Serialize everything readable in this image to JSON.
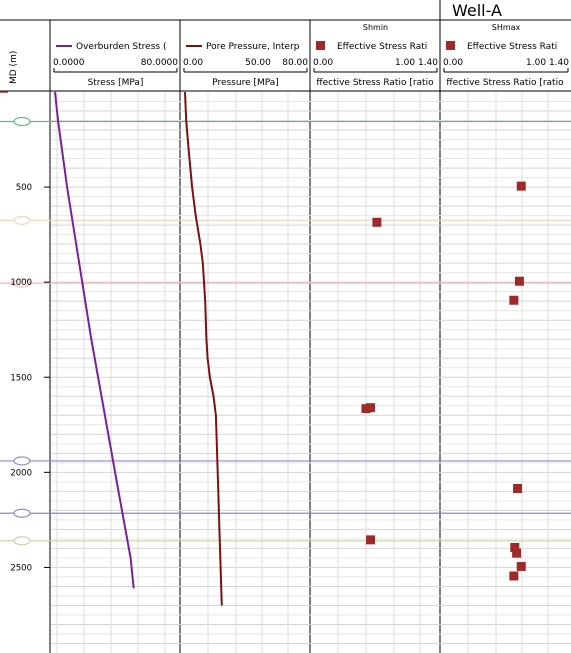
{
  "well_title": "Well-A",
  "depth_axis_label": "MD (m)",
  "tracks": [
    {
      "id": "stress",
      "header": "",
      "legend": "Overburden Stress (",
      "scale_min": "0.0000",
      "scale_max": "80.0000",
      "axis_label": "Stress [MPa]",
      "color": "#7a1f9a"
    },
    {
      "id": "pressure",
      "header": "",
      "legend": "Pore Pressure, Interp",
      "scale_min": "0.00",
      "scale_mid": "50.00",
      "scale_max": "80.00",
      "axis_label": "Pressure [MPa]",
      "color": "#7b1010"
    },
    {
      "id": "shmin",
      "header": "Shmin",
      "legend": "Effective Stress Rati",
      "scale_min": "0.00",
      "scale_max": "1.00 1.40",
      "axis_label": "ffective Stress Ratio [ratio",
      "color": "#9e2a2a"
    },
    {
      "id": "shmax",
      "header": "SHmax",
      "legend": "Effective Stress Rati",
      "scale_min": "0.00",
      "scale_max": "1.00 1.40",
      "axis_label": "ffective Stress Ratio [ratio",
      "color": "#9e2a2a"
    }
  ],
  "chart_data": {
    "type": "scatter",
    "depth_ticks": [
      500,
      1000,
      1500,
      2000,
      2500
    ],
    "depth_range": [
      0,
      2950
    ],
    "markers": [
      {
        "md": 155,
        "color": "#5fba7d"
      },
      {
        "md": 675,
        "color": "#f4d7c0"
      },
      {
        "md": 1005,
        "color": "#f2b8b8"
      },
      {
        "md": 1940,
        "color": "#8a8ac8"
      },
      {
        "md": 2215,
        "color": "#8a8ac8"
      },
      {
        "md": 2360,
        "color": "#c8d4a0"
      }
    ],
    "series": [
      {
        "name": "Overburden Stress (",
        "track": "stress",
        "style": "line",
        "xlim": [
          0,
          80
        ],
        "points": [
          [
            0,
            0
          ],
          [
            2,
            150
          ],
          [
            8,
            500
          ],
          [
            16,
            900
          ],
          [
            24,
            1300
          ],
          [
            33,
            1700
          ],
          [
            42,
            2100
          ],
          [
            50,
            2450
          ],
          [
            52,
            2610
          ]
        ]
      },
      {
        "name": "Pore Pressure, Interp",
        "track": "pressure",
        "style": "line",
        "xlim": [
          0,
          80
        ],
        "points": [
          [
            0,
            0
          ],
          [
            1,
            150
          ],
          [
            3,
            300
          ],
          [
            6,
            500
          ],
          [
            9,
            650
          ],
          [
            13,
            800
          ],
          [
            15,
            900
          ],
          [
            16,
            1000
          ],
          [
            17,
            1100
          ],
          [
            17.5,
            1200
          ],
          [
            18,
            1300
          ],
          [
            19,
            1400
          ],
          [
            21,
            1500
          ],
          [
            24,
            1600
          ],
          [
            26,
            1700
          ],
          [
            27,
            1900
          ],
          [
            28,
            2100
          ],
          [
            29,
            2300
          ],
          [
            30,
            2500
          ],
          [
            31,
            2700
          ]
        ]
      },
      {
        "name": "Effective Stress Rati",
        "track": "shmin",
        "style": "points",
        "xlim": [
          0,
          1.4
        ],
        "points": [
          [
            0.71,
            685
          ],
          [
            0.59,
            1665
          ],
          [
            0.64,
            1660
          ],
          [
            0.64,
            2355
          ]
        ]
      },
      {
        "name": "Effective Stress Rati",
        "track": "shmax",
        "style": "points",
        "xlim": [
          0,
          1.4
        ],
        "points": [
          [
            0.86,
            495
          ],
          [
            0.84,
            995
          ],
          [
            0.78,
            1095
          ],
          [
            0.82,
            2085
          ],
          [
            0.79,
            2395
          ],
          [
            0.81,
            2425
          ],
          [
            0.86,
            2495
          ],
          [
            0.78,
            2545
          ]
        ]
      }
    ]
  }
}
